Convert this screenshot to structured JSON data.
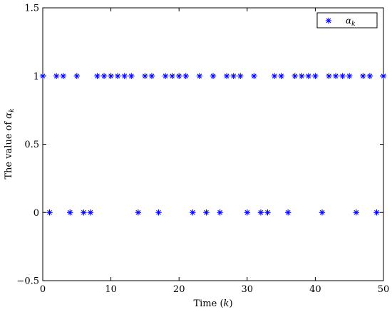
{
  "chart_data": {
    "type": "scatter",
    "title": "",
    "xlabel": "Time",
    "xlabel_var": "k",
    "ylabel": "The value of",
    "ylabel_var": "α",
    "ylabel_sub": "k",
    "xlim": [
      0,
      50
    ],
    "ylim": [
      -0.5,
      1.5
    ],
    "xticks": [
      0,
      10,
      20,
      30,
      40,
      50
    ],
    "yticks": [
      -0.5,
      0,
      0.5,
      1,
      1.5
    ],
    "xtick_labels": [
      "0",
      "10",
      "20",
      "30",
      "40",
      "50"
    ],
    "ytick_labels": [
      "−0.5",
      "0",
      "0.5",
      "1",
      "1.5"
    ],
    "grid": false,
    "legend_position": "top-right",
    "marker": "asterisk",
    "series": [
      {
        "name": "α",
        "name_sub": "k",
        "color": "#0000ff",
        "x": [
          0,
          1,
          2,
          3,
          4,
          5,
          6,
          7,
          8,
          9,
          10,
          11,
          12,
          13,
          14,
          15,
          16,
          17,
          18,
          19,
          20,
          21,
          22,
          23,
          24,
          25,
          26,
          27,
          28,
          29,
          30,
          31,
          32,
          33,
          34,
          35,
          36,
          37,
          38,
          39,
          40,
          41,
          42,
          43,
          44,
          45,
          46,
          47,
          48,
          49,
          50
        ],
        "y": [
          1,
          0,
          1,
          1,
          0,
          1,
          0,
          0,
          1,
          1,
          1,
          1,
          1,
          1,
          0,
          1,
          1,
          0,
          1,
          1,
          1,
          1,
          0,
          1,
          0,
          1,
          0,
          1,
          1,
          1,
          0,
          1,
          0,
          0,
          1,
          1,
          0,
          1,
          1,
          1,
          1,
          0,
          1,
          1,
          1,
          1,
          0,
          1,
          1,
          0,
          1
        ]
      }
    ]
  }
}
